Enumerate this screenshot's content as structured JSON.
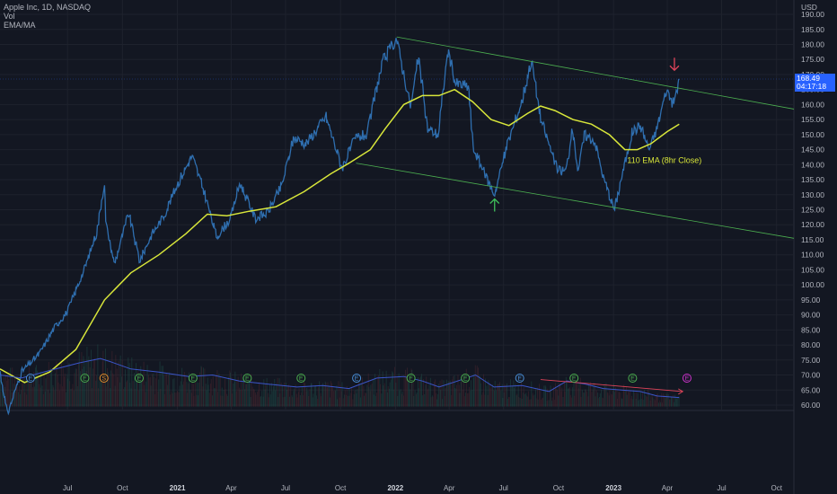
{
  "legend": {
    "symbol": "Apple Inc, 1D, NASDAQ",
    "vol": "Vol",
    "indicator": "EMA/MA"
  },
  "currency": "USD",
  "last_price": {
    "value": "168.49",
    "countdown": "04:17:18"
  },
  "annotation": "110 EMA (8hr Close)",
  "colors": {
    "price": "#2f6fb0",
    "ema": "#d8e63a",
    "channel": "#4caf50",
    "volume": "#3b55c8",
    "down_arrow": "#e0445a",
    "up_arrow": "#3fbf5a",
    "trend": "#e0445a"
  },
  "chart_data": {
    "type": "line",
    "ylim": [
      58.5,
      193
    ],
    "y_ticks": [
      "190.00",
      "185.00",
      "180.00",
      "175.00",
      "170.00",
      "165.00",
      "160.00",
      "155.00",
      "150.00",
      "145.00",
      "140.00",
      "135.00",
      "130.00",
      "125.00",
      "120.00",
      "115.00",
      "110.00",
      "105.00",
      "100.00",
      "95.00",
      "90.00",
      "85.00",
      "80.00",
      "75.00",
      "70.00",
      "65.00",
      "60.00"
    ],
    "x_ticks": [
      {
        "label": "Jul",
        "date": "2020-07-01",
        "bold": false
      },
      {
        "label": "Oct",
        "date": "2020-10-01",
        "bold": false
      },
      {
        "label": "2021",
        "date": "2021-01-01",
        "bold": true
      },
      {
        "label": "Apr",
        "date": "2021-04-01",
        "bold": false
      },
      {
        "label": "Jul",
        "date": "2021-07-01",
        "bold": false
      },
      {
        "label": "Oct",
        "date": "2021-10-01",
        "bold": false
      },
      {
        "label": "2022",
        "date": "2022-01-01",
        "bold": true
      },
      {
        "label": "Apr",
        "date": "2022-04-01",
        "bold": false
      },
      {
        "label": "Jul",
        "date": "2022-07-01",
        "bold": false
      },
      {
        "label": "Oct",
        "date": "2022-10-01",
        "bold": false
      },
      {
        "label": "2023",
        "date": "2023-01-01",
        "bold": true
      },
      {
        "label": "Apr",
        "date": "2023-04-01",
        "bold": false
      },
      {
        "label": "Jul",
        "date": "2023-07-01",
        "bold": false
      },
      {
        "label": "Oct",
        "date": "2023-10-01",
        "bold": false
      }
    ],
    "series": [
      {
        "id": "close",
        "points": [
          [
            "2020-03-10",
            71.5
          ],
          [
            "2020-03-23",
            57
          ],
          [
            "2020-04-15",
            71
          ],
          [
            "2020-05-15",
            77
          ],
          [
            "2020-06-10",
            86
          ],
          [
            "2020-07-01",
            91
          ],
          [
            "2020-07-31",
            106
          ],
          [
            "2020-08-20",
            118
          ],
          [
            "2020-09-01",
            134
          ],
          [
            "2020-09-04",
            120
          ],
          [
            "2020-09-18",
            107
          ],
          [
            "2020-10-12",
            124
          ],
          [
            "2020-10-30",
            108
          ],
          [
            "2020-11-20",
            117
          ],
          [
            "2020-12-10",
            123
          ],
          [
            "2020-12-31",
            133
          ],
          [
            "2021-01-26",
            143
          ],
          [
            "2021-02-15",
            131
          ],
          [
            "2021-03-08",
            116
          ],
          [
            "2021-03-31",
            122
          ],
          [
            "2021-04-16",
            134
          ],
          [
            "2021-05-12",
            122
          ],
          [
            "2021-06-01",
            124
          ],
          [
            "2021-06-25",
            133
          ],
          [
            "2021-07-15",
            149
          ],
          [
            "2021-08-05",
            147
          ],
          [
            "2021-09-07",
            156
          ],
          [
            "2021-10-04",
            139
          ],
          [
            "2021-10-27",
            149
          ],
          [
            "2021-11-15",
            150
          ],
          [
            "2021-11-30",
            165
          ],
          [
            "2021-12-13",
            175
          ],
          [
            "2022-01-03",
            182
          ],
          [
            "2022-01-27",
            159
          ],
          [
            "2022-02-09",
            176
          ],
          [
            "2022-02-24",
            152
          ],
          [
            "2022-03-14",
            150
          ],
          [
            "2022-03-30",
            178
          ],
          [
            "2022-04-12",
            167
          ],
          [
            "2022-05-04",
            166
          ],
          [
            "2022-05-11",
            146
          ],
          [
            "2022-05-24",
            140
          ],
          [
            "2022-06-16",
            130
          ],
          [
            "2022-07-08",
            147
          ],
          [
            "2022-08-01",
            161
          ],
          [
            "2022-08-17",
            175
          ],
          [
            "2022-09-02",
            155
          ],
          [
            "2022-09-30",
            138
          ],
          [
            "2022-10-14",
            138
          ],
          [
            "2022-10-25",
            152
          ],
          [
            "2022-11-03",
            138
          ],
          [
            "2022-11-14",
            150
          ],
          [
            "2022-12-01",
            148
          ],
          [
            "2022-12-15",
            136
          ],
          [
            "2023-01-03",
            125
          ],
          [
            "2023-01-13",
            134
          ],
          [
            "2023-02-02",
            151
          ],
          [
            "2023-02-16",
            153
          ],
          [
            "2023-03-02",
            145
          ],
          [
            "2023-03-15",
            152
          ],
          [
            "2023-03-31",
            165
          ],
          [
            "2023-04-12",
            160
          ],
          [
            "2023-04-21",
            168.49
          ]
        ]
      },
      {
        "id": "ema",
        "name": "110 EMA (8hr Close)",
        "points": [
          [
            "2020-03-10",
            72
          ],
          [
            "2020-04-20",
            67.5
          ],
          [
            "2020-06-01",
            71
          ],
          [
            "2020-07-15",
            78.5
          ],
          [
            "2020-09-01",
            95
          ],
          [
            "2020-10-15",
            104
          ],
          [
            "2020-12-01",
            110
          ],
          [
            "2021-01-15",
            117
          ],
          [
            "2021-02-20",
            123.5
          ],
          [
            "2021-03-25",
            123
          ],
          [
            "2021-05-01",
            124.5
          ],
          [
            "2021-06-15",
            126
          ],
          [
            "2021-08-01",
            131
          ],
          [
            "2021-09-15",
            137
          ],
          [
            "2021-10-15",
            140.5
          ],
          [
            "2021-11-20",
            145
          ],
          [
            "2021-12-15",
            152
          ],
          [
            "2022-01-15",
            160
          ],
          [
            "2022-02-15",
            163
          ],
          [
            "2022-03-15",
            163
          ],
          [
            "2022-04-10",
            165
          ],
          [
            "2022-05-10",
            161
          ],
          [
            "2022-06-10",
            155
          ],
          [
            "2022-07-10",
            153
          ],
          [
            "2022-08-10",
            157
          ],
          [
            "2022-09-01",
            159.5
          ],
          [
            "2022-09-25",
            158
          ],
          [
            "2022-10-25",
            155
          ],
          [
            "2022-11-25",
            153.5
          ],
          [
            "2022-12-25",
            150
          ],
          [
            "2023-01-20",
            145
          ],
          [
            "2023-02-10",
            145
          ],
          [
            "2023-03-05",
            147
          ],
          [
            "2023-04-01",
            151
          ],
          [
            "2023-04-21",
            153.5
          ]
        ]
      },
      {
        "id": "volume_ma",
        "name": "Vol",
        "points": [
          [
            "2020-03-10",
            70
          ],
          [
            "2020-04-15",
            69
          ],
          [
            "2020-06-01",
            71.5
          ],
          [
            "2020-07-20",
            74
          ],
          [
            "2020-08-25",
            75.5
          ],
          [
            "2020-09-10",
            74.5
          ],
          [
            "2020-10-15",
            72
          ],
          [
            "2020-12-01",
            71
          ],
          [
            "2021-01-20",
            69.5
          ],
          [
            "2021-03-01",
            70
          ],
          [
            "2021-04-15",
            68
          ],
          [
            "2021-06-01",
            67
          ],
          [
            "2021-07-20",
            66
          ],
          [
            "2021-09-01",
            66.5
          ],
          [
            "2021-10-15",
            65.5
          ],
          [
            "2021-12-01",
            69
          ],
          [
            "2022-01-15",
            69.5
          ],
          [
            "2022-02-15",
            68
          ],
          [
            "2022-03-15",
            66
          ],
          [
            "2022-04-15",
            68
          ],
          [
            "2022-05-15",
            70
          ],
          [
            "2022-06-15",
            66
          ],
          [
            "2022-08-01",
            66.5
          ],
          [
            "2022-09-15",
            64.5
          ],
          [
            "2022-10-15",
            68
          ],
          [
            "2022-11-15",
            67
          ],
          [
            "2022-12-15",
            65.5
          ],
          [
            "2023-01-15",
            65
          ],
          [
            "2023-02-15",
            64.5
          ],
          [
            "2023-03-15",
            63
          ],
          [
            "2023-04-21",
            62.5
          ]
        ]
      }
    ],
    "channel": {
      "upper": [
        [
          "2022-01-03",
          182.5
        ],
        [
          "2023-10-30",
          158.5
        ]
      ],
      "lower": [
        [
          "2021-10-27",
          140.5
        ],
        [
          "2023-10-30",
          115.5
        ]
      ]
    },
    "markers": [
      {
        "type": "arrow-down",
        "date": "2023-04-13",
        "value": 173.5
      },
      {
        "type": "arrow-up",
        "date": "2022-06-16",
        "value": 126.5
      }
    ],
    "volume_trend": [
      [
        "2022-09-01",
        68.5
      ],
      [
        "2023-04-27",
        64.5
      ]
    ],
    "events": [
      {
        "date": "2020-04-30",
        "letter": "E",
        "color": "#4a90d9"
      },
      {
        "date": "2020-07-30",
        "letter": "E",
        "color": "#4caf50"
      },
      {
        "date": "2020-08-31",
        "letter": "S",
        "color": "#e8912d"
      },
      {
        "date": "2020-10-29",
        "letter": "E",
        "color": "#4caf50"
      },
      {
        "date": "2021-01-27",
        "letter": "E",
        "color": "#4caf50"
      },
      {
        "date": "2021-04-28",
        "letter": "E",
        "color": "#4caf50"
      },
      {
        "date": "2021-07-27",
        "letter": "E",
        "color": "#4caf50"
      },
      {
        "date": "2021-10-28",
        "letter": "E",
        "color": "#4a90d9"
      },
      {
        "date": "2022-01-27",
        "letter": "E",
        "color": "#4caf50"
      },
      {
        "date": "2022-04-28",
        "letter": "E",
        "color": "#4caf50"
      },
      {
        "date": "2022-07-28",
        "letter": "E",
        "color": "#4a90d9"
      },
      {
        "date": "2022-10-27",
        "letter": "E",
        "color": "#4caf50"
      },
      {
        "date": "2023-02-02",
        "letter": "E",
        "color": "#4caf50"
      },
      {
        "date": "2023-05-04",
        "letter": "E",
        "color": "#cc33cc"
      }
    ]
  }
}
